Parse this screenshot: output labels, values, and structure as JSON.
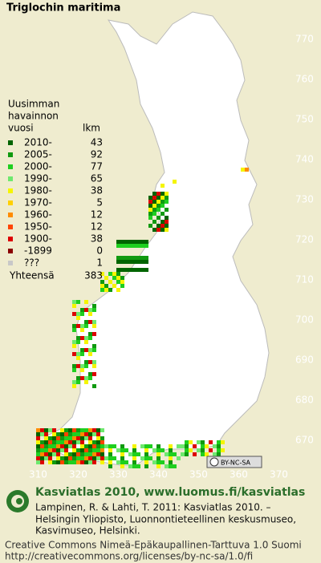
{
  "title": "Triglochin maritima",
  "legend": {
    "heading": [
      "Uusimman",
      "havainnon",
      "vuosi"
    ],
    "count_heading": "lkm",
    "entries": [
      {
        "label": "2010-",
        "count": 43,
        "color": "#006400"
      },
      {
        "label": "2005-",
        "count": 92,
        "color": "#109a10"
      },
      {
        "label": "2000-",
        "count": 77,
        "color": "#1fcf1f"
      },
      {
        "label": "1990-",
        "count": 65,
        "color": "#6ee96e"
      },
      {
        "label": "1980-",
        "count": 38,
        "color": "#f5f500"
      },
      {
        "label": "1970-",
        "count": 5,
        "color": "#ffd000"
      },
      {
        "label": "1960-",
        "count": 12,
        "color": "#ff8c00"
      },
      {
        "label": "1950-",
        "count": 12,
        "color": "#ff4500"
      },
      {
        "label": "1900-",
        "count": 38,
        "color": "#dd0000"
      },
      {
        "label": "-1899",
        "count": 0,
        "color": "#8b0000"
      },
      {
        "label": "???",
        "count": 1,
        "color": "#c8c8c8"
      }
    ],
    "total_label": "Yhteensä",
    "total": 383
  },
  "grid": {
    "y_labels": [
      770,
      760,
      750,
      740,
      730,
      720,
      710,
      700,
      690,
      680,
      670
    ],
    "x_labels": [
      310,
      320,
      330,
      340,
      350,
      360,
      370
    ]
  },
  "badge": "BY-NC-SA",
  "footer": {
    "brand": "Kasviatlas 2010, www.luomus.fi/kasviatlas",
    "citation": [
      "Lampinen, R. & Lahti, T. 2011: Kasviatlas 2010. –",
      "Helsingin Yliopisto, Luonnontieteellinen keskusmuseo,",
      "Kasvimuseo, Helsinki."
    ],
    "license": [
      "Creative Commons Nimeä-Epäkaupallinen-Tarttuva 1.0 Suomi",
      "http://creativecommons.org/licenses/by-nc-sa/1.0/fi"
    ]
  }
}
